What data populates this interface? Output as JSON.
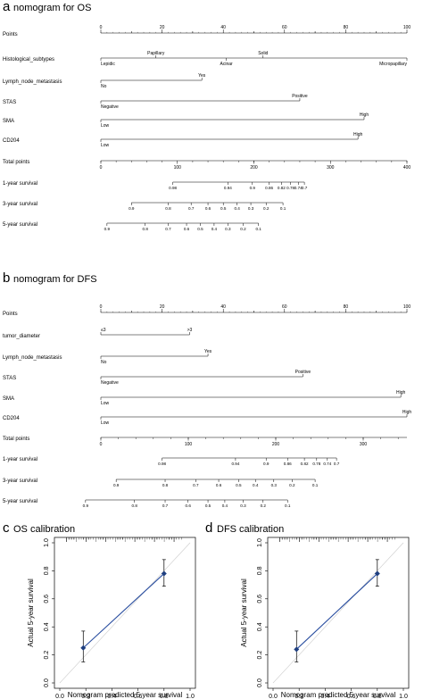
{
  "panels": [
    {
      "letter": "a",
      "title": "nomogram for OS",
      "min": 0,
      "max": 100,
      "rows": [
        {
          "name": "Points",
          "type": "points",
          "ticks": [
            {
              "v": 0,
              "l": "0"
            },
            {
              "v": 20,
              "l": "20"
            },
            {
              "v": 40,
              "l": "40"
            },
            {
              "v": 60,
              "l": "60"
            },
            {
              "v": 80,
              "l": "80"
            },
            {
              "v": 100,
              "l": "100"
            }
          ]
        },
        {
          "name": "Histological_subtypes",
          "type": "var",
          "levels": [
            {
              "v": 0,
              "l": "Lepidic",
              "pos": "below"
            },
            {
              "v": 18,
              "l": "Papillary",
              "pos": "above"
            },
            {
              "v": 41,
              "l": "Acinar",
              "pos": "below"
            },
            {
              "v": 53,
              "l": "Solid",
              "pos": "above"
            },
            {
              "v": 100,
              "l": "Micropapillary",
              "pos": "below"
            }
          ]
        },
        {
          "name": "Lymph_node_metastasis",
          "type": "var",
          "levels": [
            {
              "v": 0,
              "l": "No",
              "pos": "below"
            },
            {
              "v": 33,
              "l": "Yes",
              "pos": "above"
            }
          ]
        },
        {
          "name": "STAS",
          "type": "var",
          "levels": [
            {
              "v": 0,
              "l": "Negative",
              "pos": "below"
            },
            {
              "v": 65,
              "l": "Positive",
              "pos": "above"
            }
          ]
        },
        {
          "name": "SMA",
          "type": "var",
          "levels": [
            {
              "v": 0,
              "l": "Low",
              "pos": "below"
            },
            {
              "v": 86,
              "l": "High",
              "pos": "above"
            }
          ]
        },
        {
          "name": "CD204",
          "type": "var",
          "levels": [
            {
              "v": 0,
              "l": "Low",
              "pos": "below"
            },
            {
              "v": 84,
              "l": "High",
              "pos": "above"
            }
          ]
        },
        {
          "name": "Total points",
          "type": "total",
          "tmin": 0,
          "tmax": 400,
          "ticks": [
            {
              "v": 0,
              "l": "0"
            },
            {
              "v": 100,
              "l": "100"
            },
            {
              "v": 200,
              "l": "200"
            },
            {
              "v": 300,
              "l": "300"
            },
            {
              "v": 400,
              "l": "400"
            }
          ]
        },
        {
          "name": "1-year survival",
          "type": "surv",
          "ticks": [
            {
              "v": 23.5,
              "l": "0.98"
            },
            {
              "v": 41.5,
              "l": "0.94"
            },
            {
              "v": 49.5,
              "l": "0.9"
            },
            {
              "v": 55,
              "l": "0.86"
            },
            {
              "v": 59,
              "l": "0.82"
            },
            {
              "v": 62,
              "l": "0.78"
            },
            {
              "v": 64.5,
              "l": "0.74"
            },
            {
              "v": 66.5,
              "l": "0.7"
            }
          ]
        },
        {
          "name": "3-year survival",
          "type": "surv",
          "ticks": [
            {
              "v": 10,
              "l": "0.9"
            },
            {
              "v": 22,
              "l": "0.8"
            },
            {
              "v": 29.5,
              "l": "0.7"
            },
            {
              "v": 35,
              "l": "0.6"
            },
            {
              "v": 40,
              "l": "0.5"
            },
            {
              "v": 44.5,
              "l": "0.4"
            },
            {
              "v": 49,
              "l": "0.3"
            },
            {
              "v": 54,
              "l": "0.2"
            },
            {
              "v": 59.5,
              "l": "0.1"
            }
          ]
        },
        {
          "name": "5-year survival",
          "type": "surv",
          "ticks": [
            {
              "v": 2,
              "l": "0.9"
            },
            {
              "v": 14.5,
              "l": "0.8"
            },
            {
              "v": 22,
              "l": "0.7"
            },
            {
              "v": 28,
              "l": "0.6"
            },
            {
              "v": 32.5,
              "l": "0.5"
            },
            {
              "v": 37,
              "l": "0.4"
            },
            {
              "v": 41.5,
              "l": "0.3"
            },
            {
              "v": 46.5,
              "l": "0.2"
            },
            {
              "v": 51.5,
              "l": "0.1"
            }
          ]
        }
      ]
    },
    {
      "letter": "b",
      "title": "nomogram for DFS",
      "min": 0,
      "max": 100,
      "rows": [
        {
          "name": "Points",
          "type": "points",
          "ticks": [
            {
              "v": 0,
              "l": "0"
            },
            {
              "v": 20,
              "l": "20"
            },
            {
              "v": 40,
              "l": "40"
            },
            {
              "v": 60,
              "l": "60"
            },
            {
              "v": 80,
              "l": "80"
            },
            {
              "v": 100,
              "l": "100"
            }
          ]
        },
        {
          "name": "tumor_diameter",
          "type": "var",
          "levels": [
            {
              "v": 0,
              "l": "≤3",
              "pos": "above"
            },
            {
              "v": 29,
              "l": ">3",
              "pos": "above"
            }
          ]
        },
        {
          "name": "Lymph_node_metastasis",
          "type": "var",
          "levels": [
            {
              "v": 0,
              "l": "No",
              "pos": "below"
            },
            {
              "v": 35,
              "l": "Yes",
              "pos": "above"
            }
          ]
        },
        {
          "name": "STAS",
          "type": "var",
          "levels": [
            {
              "v": 0,
              "l": "Negative",
              "pos": "below"
            },
            {
              "v": 66,
              "l": "Positive",
              "pos": "above"
            }
          ]
        },
        {
          "name": "SMA",
          "type": "var",
          "levels": [
            {
              "v": 0,
              "l": "Low",
              "pos": "below"
            },
            {
              "v": 98,
              "l": "High",
              "pos": "above"
            }
          ]
        },
        {
          "name": "CD204",
          "type": "var",
          "levels": [
            {
              "v": 0,
              "l": "Low",
              "pos": "below"
            },
            {
              "v": 100,
              "l": "High",
              "pos": "above"
            }
          ]
        },
        {
          "name": "Total points",
          "type": "total",
          "tmin": 0,
          "tmax": 350,
          "ticks": [
            {
              "v": 0,
              "l": "0"
            },
            {
              "v": 100,
              "l": "100"
            },
            {
              "v": 200,
              "l": "200"
            },
            {
              "v": 300,
              "l": "300"
            }
          ]
        },
        {
          "name": "1-year survival",
          "type": "surv",
          "ticks": [
            {
              "v": 20,
              "l": "0.98"
            },
            {
              "v": 44,
              "l": "0.94"
            },
            {
              "v": 54,
              "l": "0.9"
            },
            {
              "v": 61,
              "l": "0.86"
            },
            {
              "v": 66.5,
              "l": "0.82"
            },
            {
              "v": 70.5,
              "l": "0.78"
            },
            {
              "v": 74,
              "l": "0.74"
            },
            {
              "v": 77,
              "l": "0.7"
            }
          ]
        },
        {
          "name": "3-year survival",
          "type": "surv",
          "ticks": [
            {
              "v": 5,
              "l": "0.9"
            },
            {
              "v": 21,
              "l": "0.8"
            },
            {
              "v": 31,
              "l": "0.7"
            },
            {
              "v": 38.5,
              "l": "0.6"
            },
            {
              "v": 45,
              "l": "0.5"
            },
            {
              "v": 50.5,
              "l": "0.4"
            },
            {
              "v": 56.5,
              "l": "0.3"
            },
            {
              "v": 62.5,
              "l": "0.2"
            },
            {
              "v": 70,
              "l": "0.1"
            }
          ]
        },
        {
          "name": "5-year survival",
          "type": "surv",
          "ticks": [
            {
              "v": -5,
              "l": "0.9"
            },
            {
              "v": 11,
              "l": "0.8"
            },
            {
              "v": 21,
              "l": "0.7"
            },
            {
              "v": 28.5,
              "l": "0.6"
            },
            {
              "v": 35,
              "l": "0.5"
            },
            {
              "v": 40.5,
              "l": "0.4"
            },
            {
              "v": 46.5,
              "l": "0.3"
            },
            {
              "v": 53,
              "l": "0.2"
            },
            {
              "v": 61,
              "l": "0.1"
            }
          ]
        }
      ]
    }
  ],
  "chart_data": [
    {
      "type": "scatter",
      "letter": "c",
      "title": "OS calibration",
      "xlabel": "Nomogram predicted 5 year survival",
      "ylabel": "Actual 5-year survival",
      "xlim": [
        0,
        1
      ],
      "ylim": [
        0,
        1
      ],
      "xticks": [
        "0.0",
        "0.2",
        "0.4",
        "0.6",
        "0.8",
        "1.0"
      ],
      "yticks": [
        "0.0",
        "0.2",
        "0.4",
        "0.6",
        "0.8",
        "1.0"
      ],
      "points": [
        {
          "x": 0.18,
          "y": 0.25,
          "lo": 0.15,
          "hi": 0.37
        },
        {
          "x": 0.8,
          "y": 0.78,
          "lo": 0.69,
          "hi": 0.88
        }
      ]
    },
    {
      "type": "scatter",
      "letter": "d",
      "title": "DFS calibration",
      "xlabel": "Nomogram predicted 5 year survival",
      "ylabel": "Actual 5-year survival",
      "xlim": [
        0,
        1
      ],
      "ylim": [
        0,
        1
      ],
      "xticks": [
        "0.0",
        "0.2",
        "0.4",
        "0.6",
        "0.8",
        "1.0"
      ],
      "yticks": [
        "0.0",
        "0.2",
        "0.4",
        "0.6",
        "0.8",
        "1.0"
      ],
      "points": [
        {
          "x": 0.18,
          "y": 0.24,
          "lo": 0.15,
          "hi": 0.37
        },
        {
          "x": 0.8,
          "y": 0.78,
          "lo": 0.69,
          "hi": 0.88
        }
      ]
    }
  ],
  "colors": {
    "fit_line": "#2b4fa0",
    "diagonal": "#cccccc",
    "marker": "#1f3f80",
    "axis": "#000000"
  }
}
